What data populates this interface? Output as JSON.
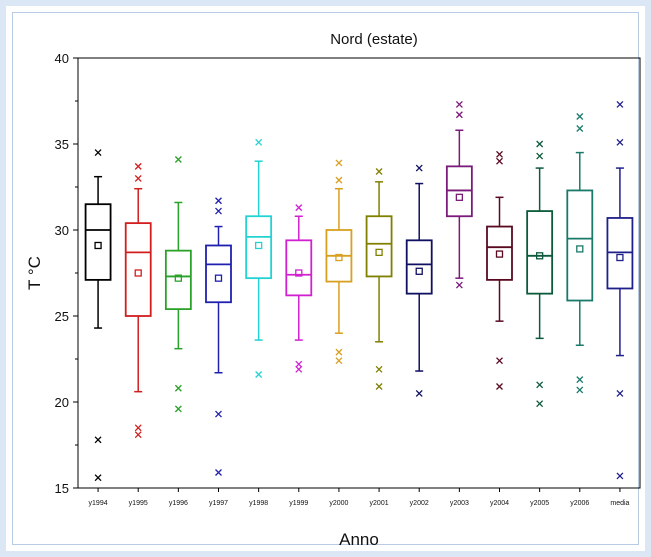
{
  "chart_data": {
    "type": "box",
    "title": "Nord (estate)",
    "xlabel": "Anno",
    "ylabel": "T °C",
    "ylim": [
      15,
      40
    ],
    "yticks": [
      15,
      20,
      25,
      30,
      35,
      40
    ],
    "grid": false,
    "legend": "none",
    "categories": [
      "y1994",
      "y1995",
      "y1996",
      "y1997",
      "y1998",
      "y1999",
      "y2000",
      "y2001",
      "y2002",
      "y2003",
      "y2004",
      "y2005",
      "y2006",
      "media"
    ],
    "series": [
      {
        "category": "y1994",
        "color": "#000000",
        "whisker_low": 24.3,
        "q1": 27.1,
        "median": 30.0,
        "q3": 31.5,
        "whisker_high": 33.1,
        "mean": 29.1,
        "outliers": [
          34.5,
          17.8,
          15.6
        ]
      },
      {
        "category": "y1995",
        "color": "#d21e1e",
        "whisker_low": 20.6,
        "q1": 25.0,
        "median": 28.7,
        "q3": 30.4,
        "whisker_high": 32.4,
        "mean": 27.5,
        "outliers": [
          33.7,
          33.0,
          18.5,
          18.1
        ]
      },
      {
        "category": "y1996",
        "color": "#2aa22a",
        "whisker_low": 23.1,
        "q1": 25.4,
        "median": 27.3,
        "q3": 28.8,
        "whisker_high": 31.6,
        "mean": 27.2,
        "outliers": [
          34.1,
          20.8,
          19.6
        ]
      },
      {
        "category": "y1997",
        "color": "#2020b0",
        "whisker_low": 21.7,
        "q1": 25.8,
        "median": 28.0,
        "q3": 29.1,
        "whisker_high": 30.2,
        "mean": 27.2,
        "outliers": [
          31.7,
          31.1,
          19.3,
          15.9
        ]
      },
      {
        "category": "y1998",
        "color": "#22d3d3",
        "whisker_low": 23.6,
        "q1": 27.2,
        "median": 29.6,
        "q3": 30.8,
        "whisker_high": 34.0,
        "mean": 29.1,
        "outliers": [
          35.1,
          21.6
        ]
      },
      {
        "category": "y1999",
        "color": "#d020d0",
        "whisker_low": 23.6,
        "q1": 26.2,
        "median": 27.4,
        "q3": 29.4,
        "whisker_high": 30.8,
        "mean": 27.5,
        "outliers": [
          31.3,
          22.2,
          21.9
        ]
      },
      {
        "category": "y2000",
        "color": "#d8a020",
        "whisker_low": 24.0,
        "q1": 27.0,
        "median": 28.5,
        "q3": 30.0,
        "whisker_high": 32.4,
        "mean": 28.4,
        "outliers": [
          33.9,
          32.9,
          22.9,
          22.4
        ]
      },
      {
        "category": "y2001",
        "color": "#808000",
        "whisker_low": 23.5,
        "q1": 27.3,
        "median": 29.2,
        "q3": 30.8,
        "whisker_high": 32.8,
        "mean": 28.7,
        "outliers": [
          33.4,
          21.9,
          20.9
        ]
      },
      {
        "category": "y2002",
        "color": "#101060",
        "whisker_low": 21.8,
        "q1": 26.3,
        "median": 28.0,
        "q3": 29.4,
        "whisker_high": 32.7,
        "mean": 27.6,
        "outliers": [
          33.6,
          20.5
        ]
      },
      {
        "category": "y2003",
        "color": "#7a1a7a",
        "whisker_low": 27.2,
        "q1": 30.8,
        "median": 32.3,
        "q3": 33.7,
        "whisker_high": 35.8,
        "mean": 31.9,
        "outliers": [
          37.3,
          36.7,
          26.8
        ]
      },
      {
        "category": "y2004",
        "color": "#5a0a20",
        "whisker_low": 24.7,
        "q1": 27.1,
        "median": 29.0,
        "q3": 30.2,
        "whisker_high": 31.9,
        "mean": 28.6,
        "outliers": [
          34.4,
          34.0,
          22.4,
          20.9
        ]
      },
      {
        "category": "y2005",
        "color": "#0c5a3a",
        "whisker_low": 23.7,
        "q1": 26.3,
        "median": 28.5,
        "q3": 31.1,
        "whisker_high": 33.6,
        "mean": 28.5,
        "outliers": [
          35.0,
          34.3,
          21.0,
          19.9
        ]
      },
      {
        "category": "y2006",
        "color": "#1a7a6a",
        "whisker_low": 23.3,
        "q1": 25.9,
        "median": 29.5,
        "q3": 32.3,
        "whisker_high": 34.5,
        "mean": 28.9,
        "outliers": [
          36.6,
          35.9,
          21.3,
          20.7
        ]
      },
      {
        "category": "media",
        "color": "#20208a",
        "whisker_low": 22.7,
        "q1": 26.6,
        "median": 28.7,
        "q3": 30.7,
        "whisker_high": 33.6,
        "mean": 28.4,
        "outliers": [
          37.3,
          35.1,
          20.5,
          15.7
        ]
      }
    ]
  }
}
